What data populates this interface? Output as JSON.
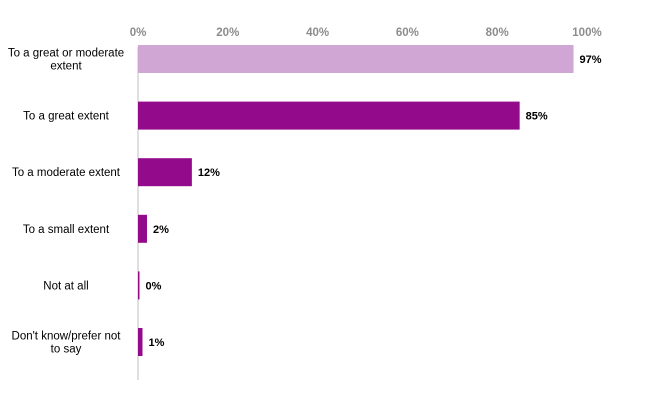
{
  "chart_data": {
    "type": "bar",
    "orientation": "horizontal",
    "title": "",
    "xlabel": "",
    "ylabel": "",
    "xlim": [
      0,
      100
    ],
    "ticks": [
      "0%",
      "20%",
      "40%",
      "60%",
      "80%",
      "100%"
    ],
    "tick_values": [
      0,
      20,
      40,
      60,
      80,
      100
    ],
    "grid": false,
    "categories": [
      "To a great or moderate extent",
      "To a great extent",
      "To a moderate extent",
      "To a small extent",
      "Not at all",
      "Don't know/prefer not to say"
    ],
    "values": [
      97,
      85,
      12,
      2,
      0,
      1
    ],
    "value_labels": [
      "97%",
      "85%",
      "12%",
      "2%",
      "0%",
      "1%"
    ],
    "bar_colors": [
      "#cfa6d4",
      "#930b8b",
      "#930b8b",
      "#930b8b",
      "#930b8b",
      "#930b8b"
    ],
    "axis_line_color": "#bfbfbf"
  }
}
